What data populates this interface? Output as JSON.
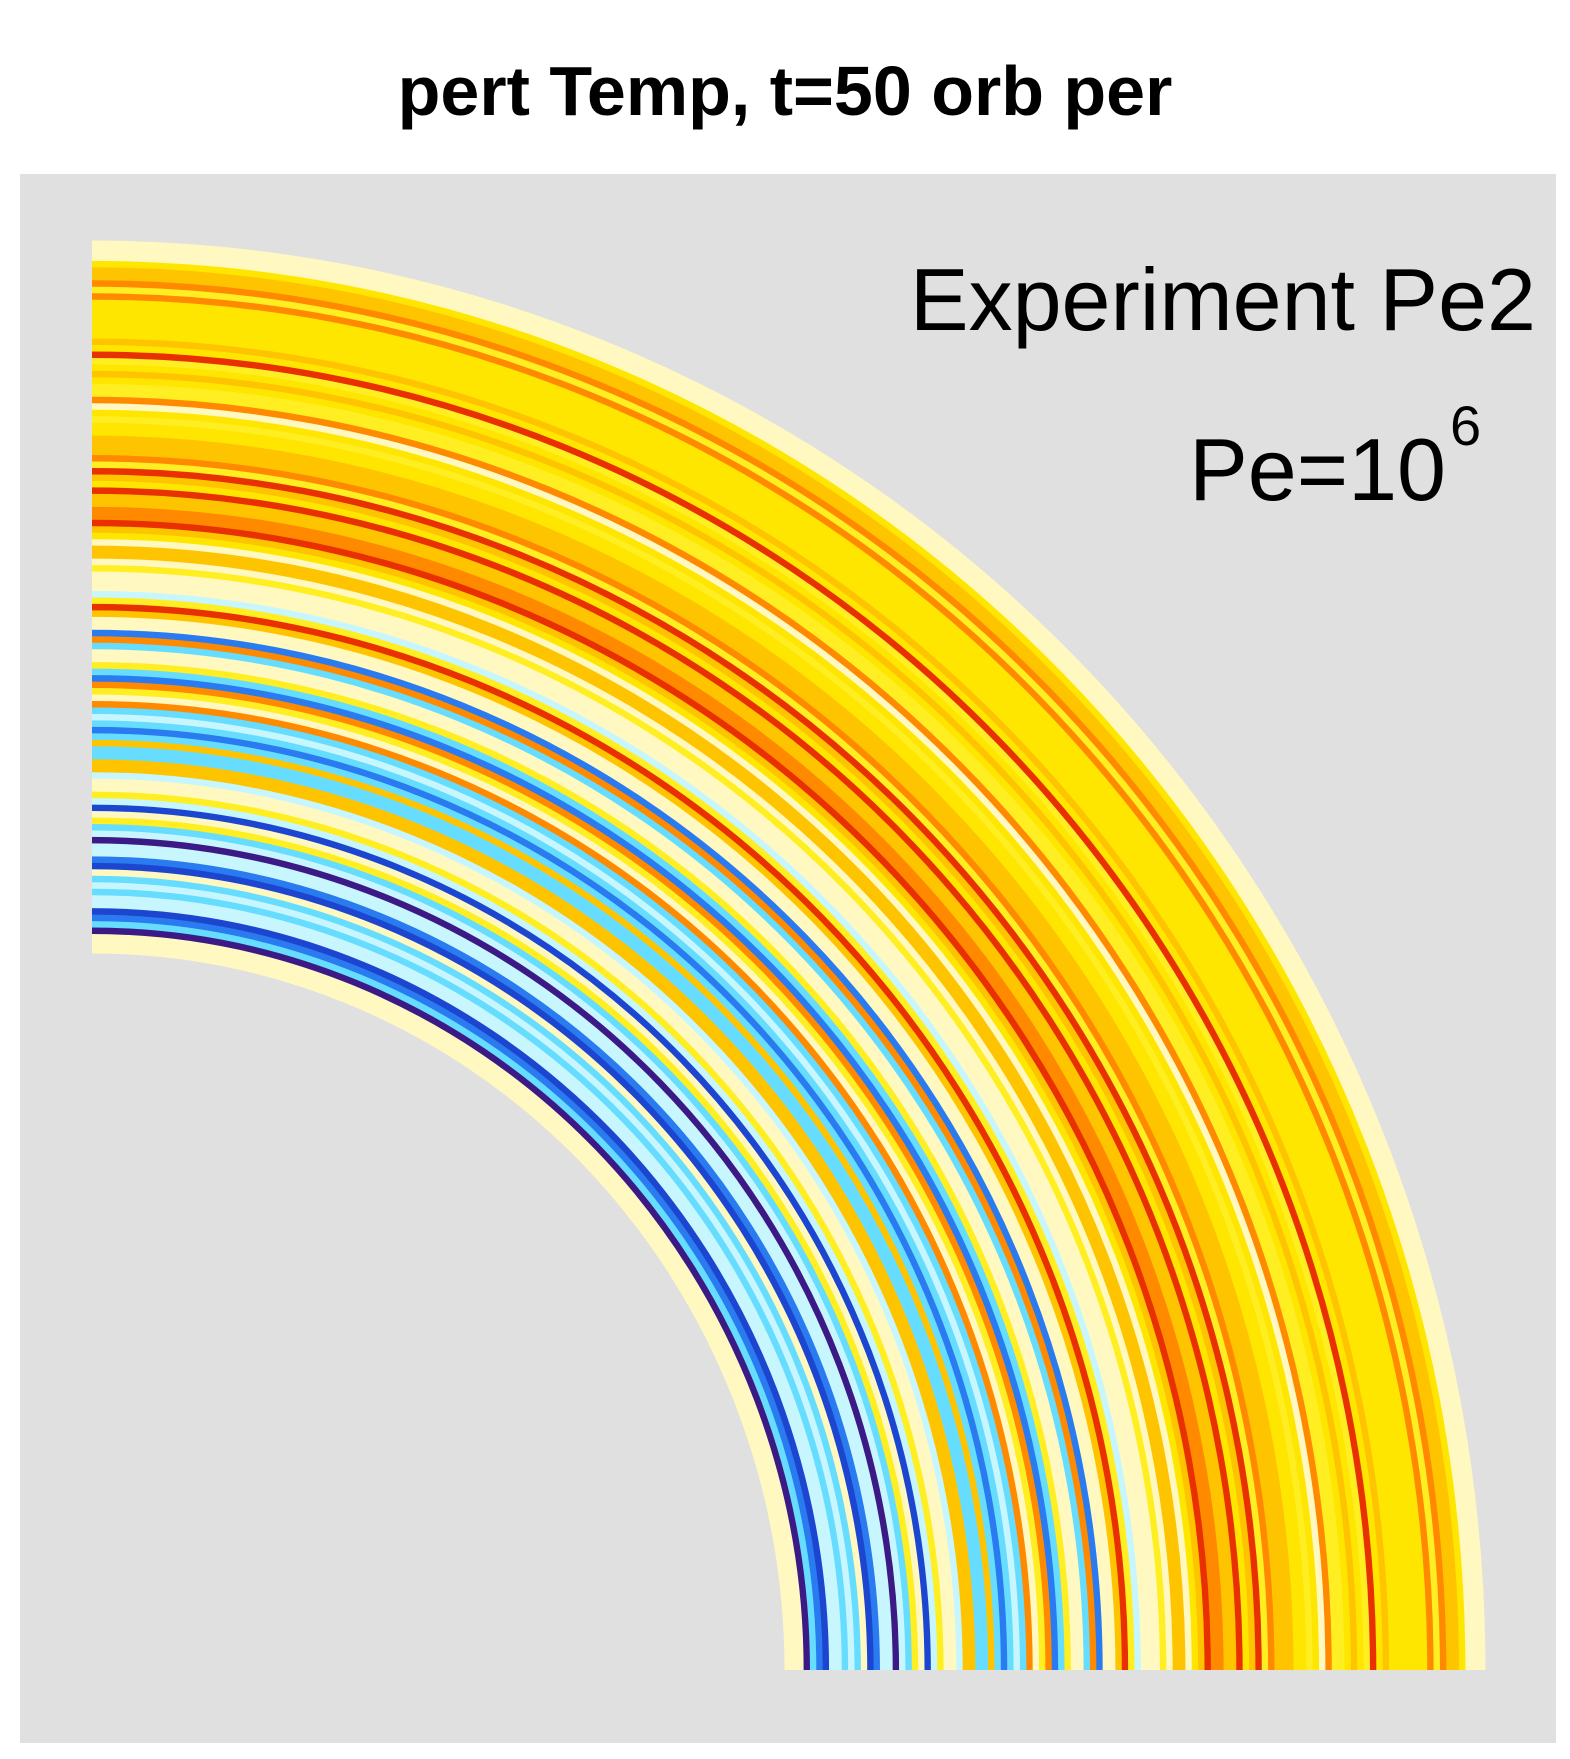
{
  "chart_data": {
    "type": "pcolor",
    "title": "pert Temp, t=50 orb per",
    "annotations": [
      "Experiment Pe2",
      {
        "base": "Pe=10",
        "exponent": "6"
      }
    ]
  }
}
